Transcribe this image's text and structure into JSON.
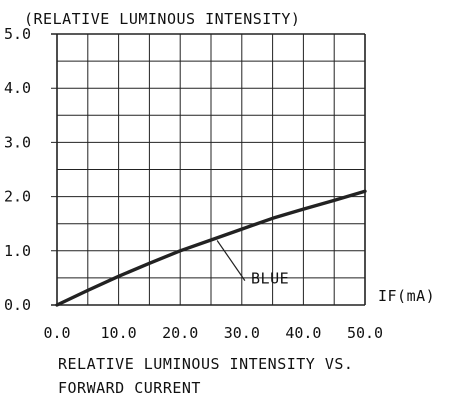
{
  "chart_data": {
    "type": "line",
    "title": "(RELATIVE LUMINOUS INTENSITY)",
    "caption_lines": [
      "RELATIVE LUMINOUS INTENSITY VS.",
      "FORWARD CURRENT"
    ],
    "xlabel": "IF(mA)",
    "ylabel": "",
    "xlim": [
      0,
      50
    ],
    "ylim": [
      0,
      5
    ],
    "x_ticks": [
      "0.0",
      "10.0",
      "20.0",
      "30.0",
      "40.0",
      "50.0"
    ],
    "y_ticks": [
      "0.0",
      "1.0",
      "2.0",
      "3.0",
      "4.0",
      "5.0"
    ],
    "grid": true,
    "series": [
      {
        "name": "BLUE",
        "color": "#222222",
        "x": [
          0,
          5,
          10,
          15,
          20,
          25,
          30,
          35,
          40,
          45,
          50
        ],
        "y": [
          0.0,
          0.27,
          0.53,
          0.77,
          1.0,
          1.2,
          1.4,
          1.6,
          1.77,
          1.93,
          2.1
        ]
      }
    ]
  }
}
